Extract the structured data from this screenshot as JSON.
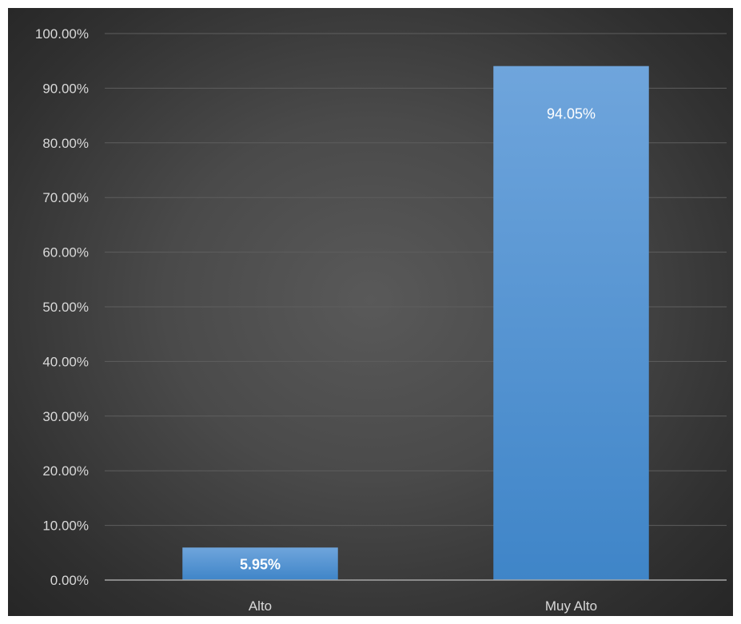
{
  "chart_data": {
    "type": "bar",
    "title": "",
    "xlabel": "",
    "ylabel": "",
    "categories": [
      "Alto",
      "Muy Alto"
    ],
    "values": [
      5.95,
      94.05
    ],
    "data_labels": [
      "5.95%",
      "94.05%"
    ],
    "ylim": [
      0,
      100
    ],
    "yticks": [
      0,
      10,
      20,
      30,
      40,
      50,
      60,
      70,
      80,
      90,
      100
    ],
    "ytick_labels": [
      "0.00%",
      "10.00%",
      "20.00%",
      "30.00%",
      "40.00%",
      "50.00%",
      "60.00%",
      "70.00%",
      "80.00%",
      "90.00%",
      "100.00%"
    ],
    "grid": true,
    "legend": "none",
    "colors": {
      "bar_top": "#6fa5dc",
      "bar_bottom": "#3f85c8",
      "background_center": "#595959",
      "background_edge": "#262626",
      "text": "#d9d9d9"
    }
  }
}
